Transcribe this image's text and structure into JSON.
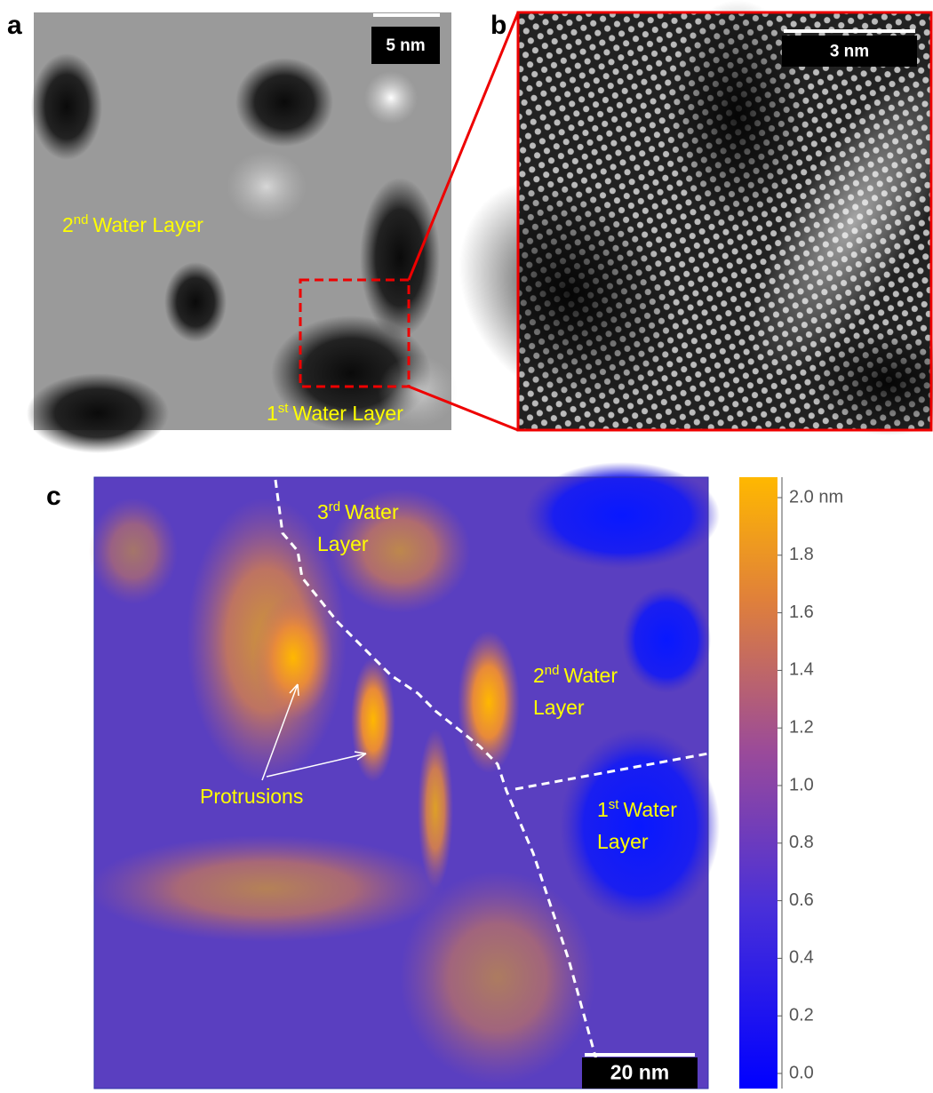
{
  "panels": [
    {
      "label": "a",
      "scale_bar": "5 nm",
      "annotations": [
        {
          "number": "2",
          "suffix": "nd",
          "lines": [
            "Water Layer"
          ]
        },
        {
          "number": "1",
          "suffix": "st",
          "lines": [
            "Water Layer"
          ]
        }
      ]
    },
    {
      "label": "b",
      "scale_bar": "3 nm",
      "annotations": []
    },
    {
      "label": "c",
      "scale_bar": "20 nm",
      "annotations": [
        {
          "number": "3",
          "suffix": "rd",
          "lines": [
            "Water",
            "Layer"
          ]
        },
        {
          "number": "2",
          "suffix": "nd",
          "lines": [
            "Water",
            "Layer"
          ]
        },
        {
          "number": "1",
          "suffix": "st",
          "lines": [
            "Water",
            "Layer"
          ]
        }
      ],
      "protrusions": "Protrusions",
      "colorbar": {
        "lim": [
          0,
          2
        ],
        "ticks": [
          {
            "value": 0,
            "label": "0.0"
          },
          0.2,
          0.4,
          0.6,
          0.8,
          {
            "value": 1,
            "label": "1.0"
          },
          1.2,
          1.4,
          1.6,
          1.8,
          {
            "value": 2,
            "label": "2.0 nm"
          }
        ]
      }
    }
  ]
}
